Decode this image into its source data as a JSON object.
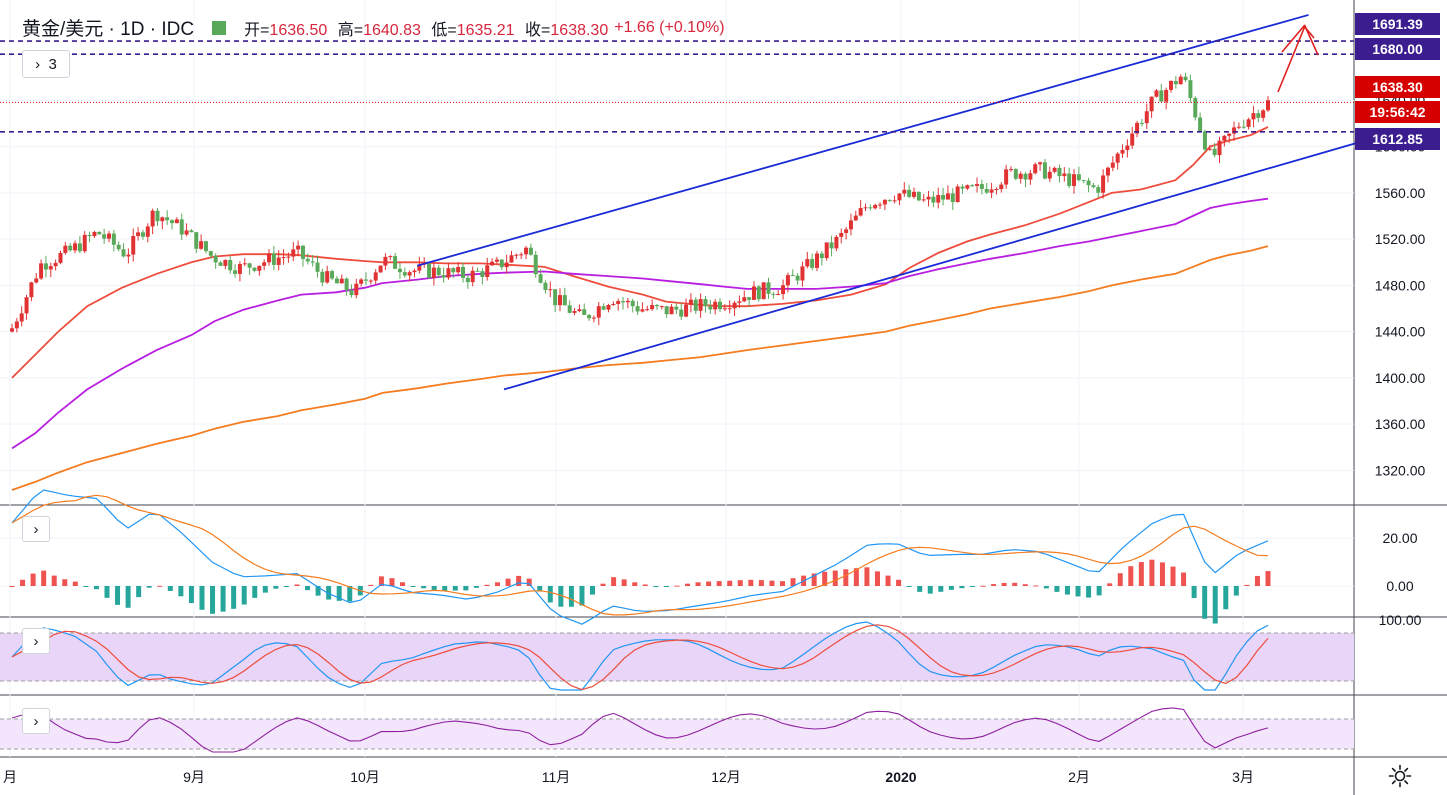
{
  "legend": {
    "title": "黄金/美元 · 1D · IDC",
    "open_label": "开",
    "open": "1636.50",
    "high_label": "高",
    "high": "1640.83",
    "low_label": "低",
    "low": "1635.21",
    "close_label": "收",
    "close": "1638.30",
    "change": "+1.66 (+0.10%)"
  },
  "controls": {
    "collapse_count": "3",
    "expand_glyph": "›",
    "collapse_glyph": "›"
  },
  "price_tags": {
    "resistance_1": "1691.39",
    "resistance_2": "1680.00",
    "last_price": "1638.30",
    "countdown": "19:56:42",
    "support": "1612.85"
  },
  "colors": {
    "up": "#e03232",
    "down": "#5aa95a",
    "ma_short": "#ee4c3c",
    "ma_mid": "#b81ee0",
    "ma_long": "#f57c1f",
    "channel": "#1a2bd6",
    "level_line": "#3b1d8f",
    "macd_line": "#2196f3",
    "signal_line": "#f57c1f",
    "hist_pos": "#ef5350",
    "hist_neg": "#26a69a",
    "band_fill": "#e9d5f7"
  },
  "chart_data": {
    "type": "candlestick",
    "title": "黄金/美元 1D IDC",
    "ylim": [
      1290,
      1720
    ],
    "y_ticks": [
      1320,
      1360,
      1400,
      1440,
      1480,
      1520,
      1560,
      1600,
      1640,
      1680
    ],
    "x_ticks": [
      "月",
      "9月",
      "10月",
      "11月",
      "12月",
      "2020",
      "2月",
      "3月"
    ],
    "x": [
      "2019-08-01",
      "2019-08-05",
      "2019-08-09",
      "2019-08-14",
      "2019-08-20",
      "2019-08-26",
      "2019-09-01",
      "2019-09-05",
      "2019-09-10",
      "2019-09-16",
      "2019-09-20",
      "2019-09-26",
      "2019-10-01",
      "2019-10-04",
      "2019-10-10",
      "2019-10-15",
      "2019-10-21",
      "2019-10-25",
      "2019-11-01",
      "2019-11-06",
      "2019-11-12",
      "2019-11-18",
      "2019-11-22",
      "2019-11-28",
      "2019-12-02",
      "2019-12-06",
      "2019-12-12",
      "2019-12-18",
      "2019-12-24",
      "2019-12-30",
      "2020-01-03",
      "2020-01-08",
      "2020-01-13",
      "2020-01-17",
      "2020-01-23",
      "2020-01-29",
      "2020-02-03",
      "2020-02-07",
      "2020-02-12",
      "2020-02-18",
      "2020-02-21",
      "2020-02-24",
      "2020-02-27",
      "2020-03-02",
      "2020-03-05"
    ],
    "close": [
      1443,
      1498,
      1509,
      1526,
      1507,
      1544,
      1528,
      1505,
      1495,
      1502,
      1508,
      1486,
      1474,
      1502,
      1493,
      1492,
      1488,
      1497,
      1512,
      1468,
      1451,
      1470,
      1460,
      1458,
      1462,
      1466,
      1474,
      1479,
      1499,
      1521,
      1551,
      1560,
      1552,
      1558,
      1564,
      1577,
      1580,
      1572,
      1563,
      1604,
      1640,
      1662,
      1589,
      1620,
      1638
    ],
    "ohlc": {
      "open": "1636.50",
      "high": "1640.83",
      "low": "1635.21",
      "close": "1638.30"
    },
    "series": [
      {
        "name": "MA20",
        "values": [
          1400,
          1420,
          1440,
          1462,
          1478,
          1490,
          1500,
          1505,
          1507,
          1507,
          1506,
          1503,
          1501,
          1500,
          1500,
          1499,
          1499,
          1498,
          1496,
          1488,
          1479,
          1472,
          1466,
          1463,
          1462,
          1462,
          1464,
          1467,
          1472,
          1481,
          1495,
          1508,
          1518,
          1524,
          1532,
          1542,
          1552,
          1560,
          1563,
          1571,
          1584,
          1600,
          1605,
          1610,
          1617
        ]
      },
      {
        "name": "MA50",
        "values": [
          1339,
          1352,
          1370,
          1390,
          1408,
          1424,
          1437,
          1449,
          1459,
          1467,
          1472,
          1474,
          1478,
          1482,
          1485,
          1488,
          1490,
          1491,
          1492,
          1490,
          1488,
          1486,
          1484,
          1481,
          1479,
          1477,
          1477,
          1477,
          1479,
          1482,
          1488,
          1494,
          1499,
          1503,
          1508,
          1514,
          1518,
          1522,
          1527,
          1533,
          1540,
          1547,
          1550,
          1553,
          1555
        ]
      },
      {
        "name": "MA200",
        "values": [
          1303,
          1310,
          1318,
          1327,
          1335,
          1343,
          1350,
          1356,
          1362,
          1367,
          1372,
          1377,
          1382,
          1387,
          1391,
          1395,
          1399,
          1402,
          1405,
          1408,
          1411,
          1413,
          1415,
          1418,
          1421,
          1424,
          1428,
          1432,
          1436,
          1440,
          1445,
          1450,
          1455,
          1460,
          1465,
          1470,
          1475,
          1480,
          1485,
          1490,
          1496,
          1502,
          1506,
          1510,
          1514
        ]
      }
    ],
    "levels": [
      1691.39,
      1680.0,
      1638.3,
      1612.85
    ]
  }
}
